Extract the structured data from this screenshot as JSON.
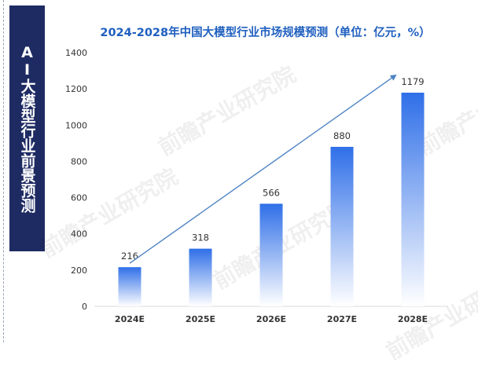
{
  "side_title": "AI大模型行业前景预测",
  "watermark_text": "前瞻产业研究院",
  "chart_data": {
    "type": "bar",
    "title": "2024-2028年中国大模型行业市场规模预测（单位：亿元，%）",
    "categories": [
      "2024E",
      "2025E",
      "2026E",
      "2027E",
      "2028E"
    ],
    "values": [
      216,
      318,
      566,
      880,
      1179
    ],
    "data_labels": [
      "216",
      "318",
      "566",
      "880",
      "1179"
    ],
    "y_ticks": [
      "0",
      "200",
      "400",
      "600",
      "800",
      "1000",
      "1200",
      "1400"
    ],
    "ylim": [
      0,
      1400
    ],
    "xlabel": "",
    "ylabel": "",
    "grid": false,
    "trend_arrow": true,
    "colors": {
      "bar_top": "#2f6fe8",
      "bar_bottom": "#ffffff",
      "arrow": "#4f84c4",
      "title": "#1f5fbf",
      "panel": "#1e2b63"
    }
  }
}
